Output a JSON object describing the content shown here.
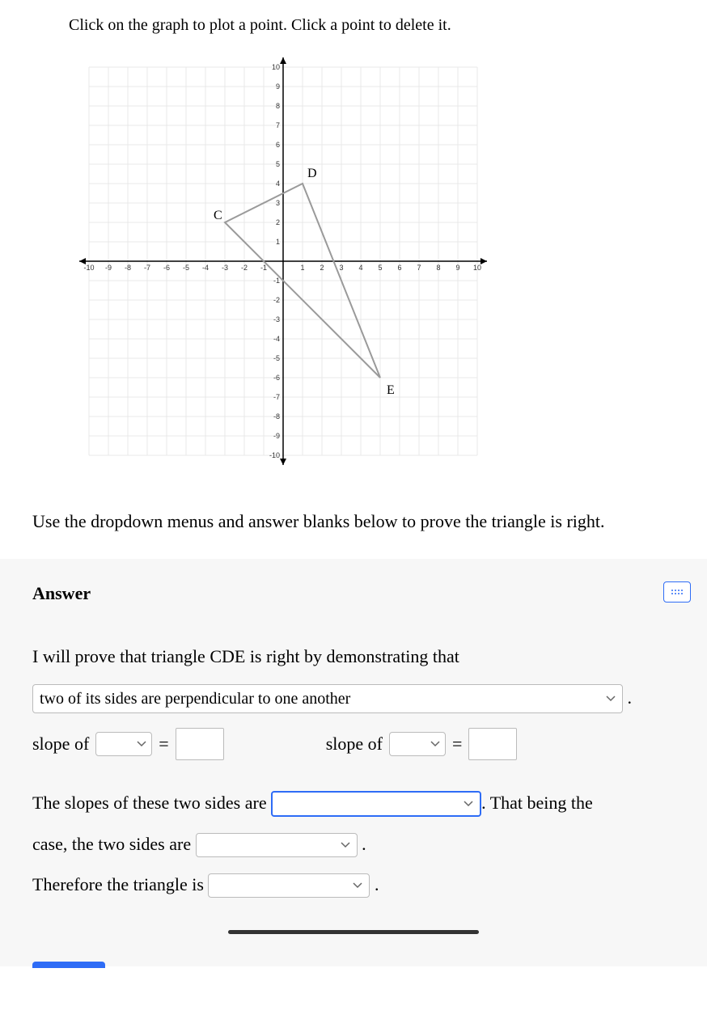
{
  "instruction": "Click on the graph to plot a point. Click a point to delete it.",
  "prompt2": "Use the dropdown menus and answer blanks below to prove the triangle is right.",
  "answer_heading": "Answer",
  "proof": {
    "intro": "I will prove that triangle CDE is right by demonstrating that",
    "condition_selected": "two of its sides are perpendicular to one another",
    "slope_label": "slope of",
    "equals": "=",
    "slopes_sentence_1": "The slopes of these two sides are",
    "slopes_sentence_2": ". That being the",
    "case_sentence_1": "case, the two sides are",
    "therefore": "Therefore the triangle is",
    "period": "."
  },
  "graph": {
    "xmin": -10,
    "xmax": 10,
    "ymin": -10,
    "ymax": 10,
    "grid_color": "#e8e8e8",
    "axis_color": "#000000",
    "tick_font_size": 9,
    "triangle_color": "#9a9a9a",
    "triangle_width": 2,
    "points": {
      "C": {
        "x": -3,
        "y": 2,
        "label": "C",
        "label_dx": -14,
        "label_dy": 18
      },
      "D": {
        "x": 1,
        "y": 4,
        "label": "D",
        "label_dx": 6,
        "label_dy": 22
      },
      "E": {
        "x": 5,
        "y": -6,
        "label": "E",
        "label_dx": 8,
        "label_dy": -6
      }
    },
    "xticks": [
      -10,
      -9,
      -8,
      -7,
      -6,
      -5,
      -4,
      -3,
      -2,
      -1,
      1,
      2,
      3,
      4,
      5,
      6,
      7,
      8,
      9,
      10
    ],
    "yticks": [
      -10,
      -9,
      -8,
      -7,
      -6,
      -5,
      -4,
      -3,
      -2,
      -1,
      1,
      2,
      3,
      4,
      5,
      6,
      7,
      8,
      9,
      10
    ]
  }
}
